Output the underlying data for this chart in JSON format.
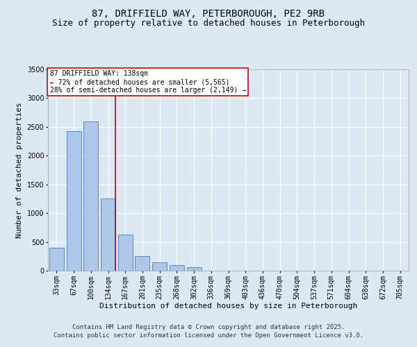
{
  "title_line1": "87, DRIFFIELD WAY, PETERBOROUGH, PE2 9RB",
  "title_line2": "Size of property relative to detached houses in Peterborough",
  "xlabel": "Distribution of detached houses by size in Peterborough",
  "ylabel": "Number of detached properties",
  "footer_line1": "Contains HM Land Registry data © Crown copyright and database right 2025.",
  "footer_line2": "Contains public sector information licensed under the Open Government Licence v3.0.",
  "annotation_line1": "87 DRIFFIELD WAY: 138sqm",
  "annotation_line2": "← 72% of detached houses are smaller (5,565)",
  "annotation_line3": "28% of semi-detached houses are larger (2,149) →",
  "bar_labels": [
    "33sqm",
    "67sqm",
    "100sqm",
    "134sqm",
    "167sqm",
    "201sqm",
    "235sqm",
    "268sqm",
    "302sqm",
    "336sqm",
    "369sqm",
    "403sqm",
    "436sqm",
    "470sqm",
    "504sqm",
    "537sqm",
    "571sqm",
    "604sqm",
    "638sqm",
    "672sqm",
    "705sqm"
  ],
  "bar_values": [
    400,
    2420,
    2600,
    1250,
    630,
    250,
    150,
    95,
    60,
    0,
    0,
    0,
    0,
    0,
    0,
    0,
    0,
    0,
    0,
    0,
    0
  ],
  "bar_color": "#aec6e8",
  "bar_edge_color": "#5588cc",
  "background_color": "#dce9f5",
  "marker_color": "#cc0000",
  "ylim": [
    0,
    3500
  ],
  "yticks": [
    0,
    500,
    1000,
    1500,
    2000,
    2500,
    3000,
    3500
  ],
  "grid_color": "#ffffff",
  "annotation_box_color": "#cc0000",
  "title_fontsize": 10,
  "subtitle_fontsize": 9,
  "axis_label_fontsize": 8,
  "tick_fontsize": 7,
  "annotation_fontsize": 7,
  "footer_fontsize": 6.5
}
